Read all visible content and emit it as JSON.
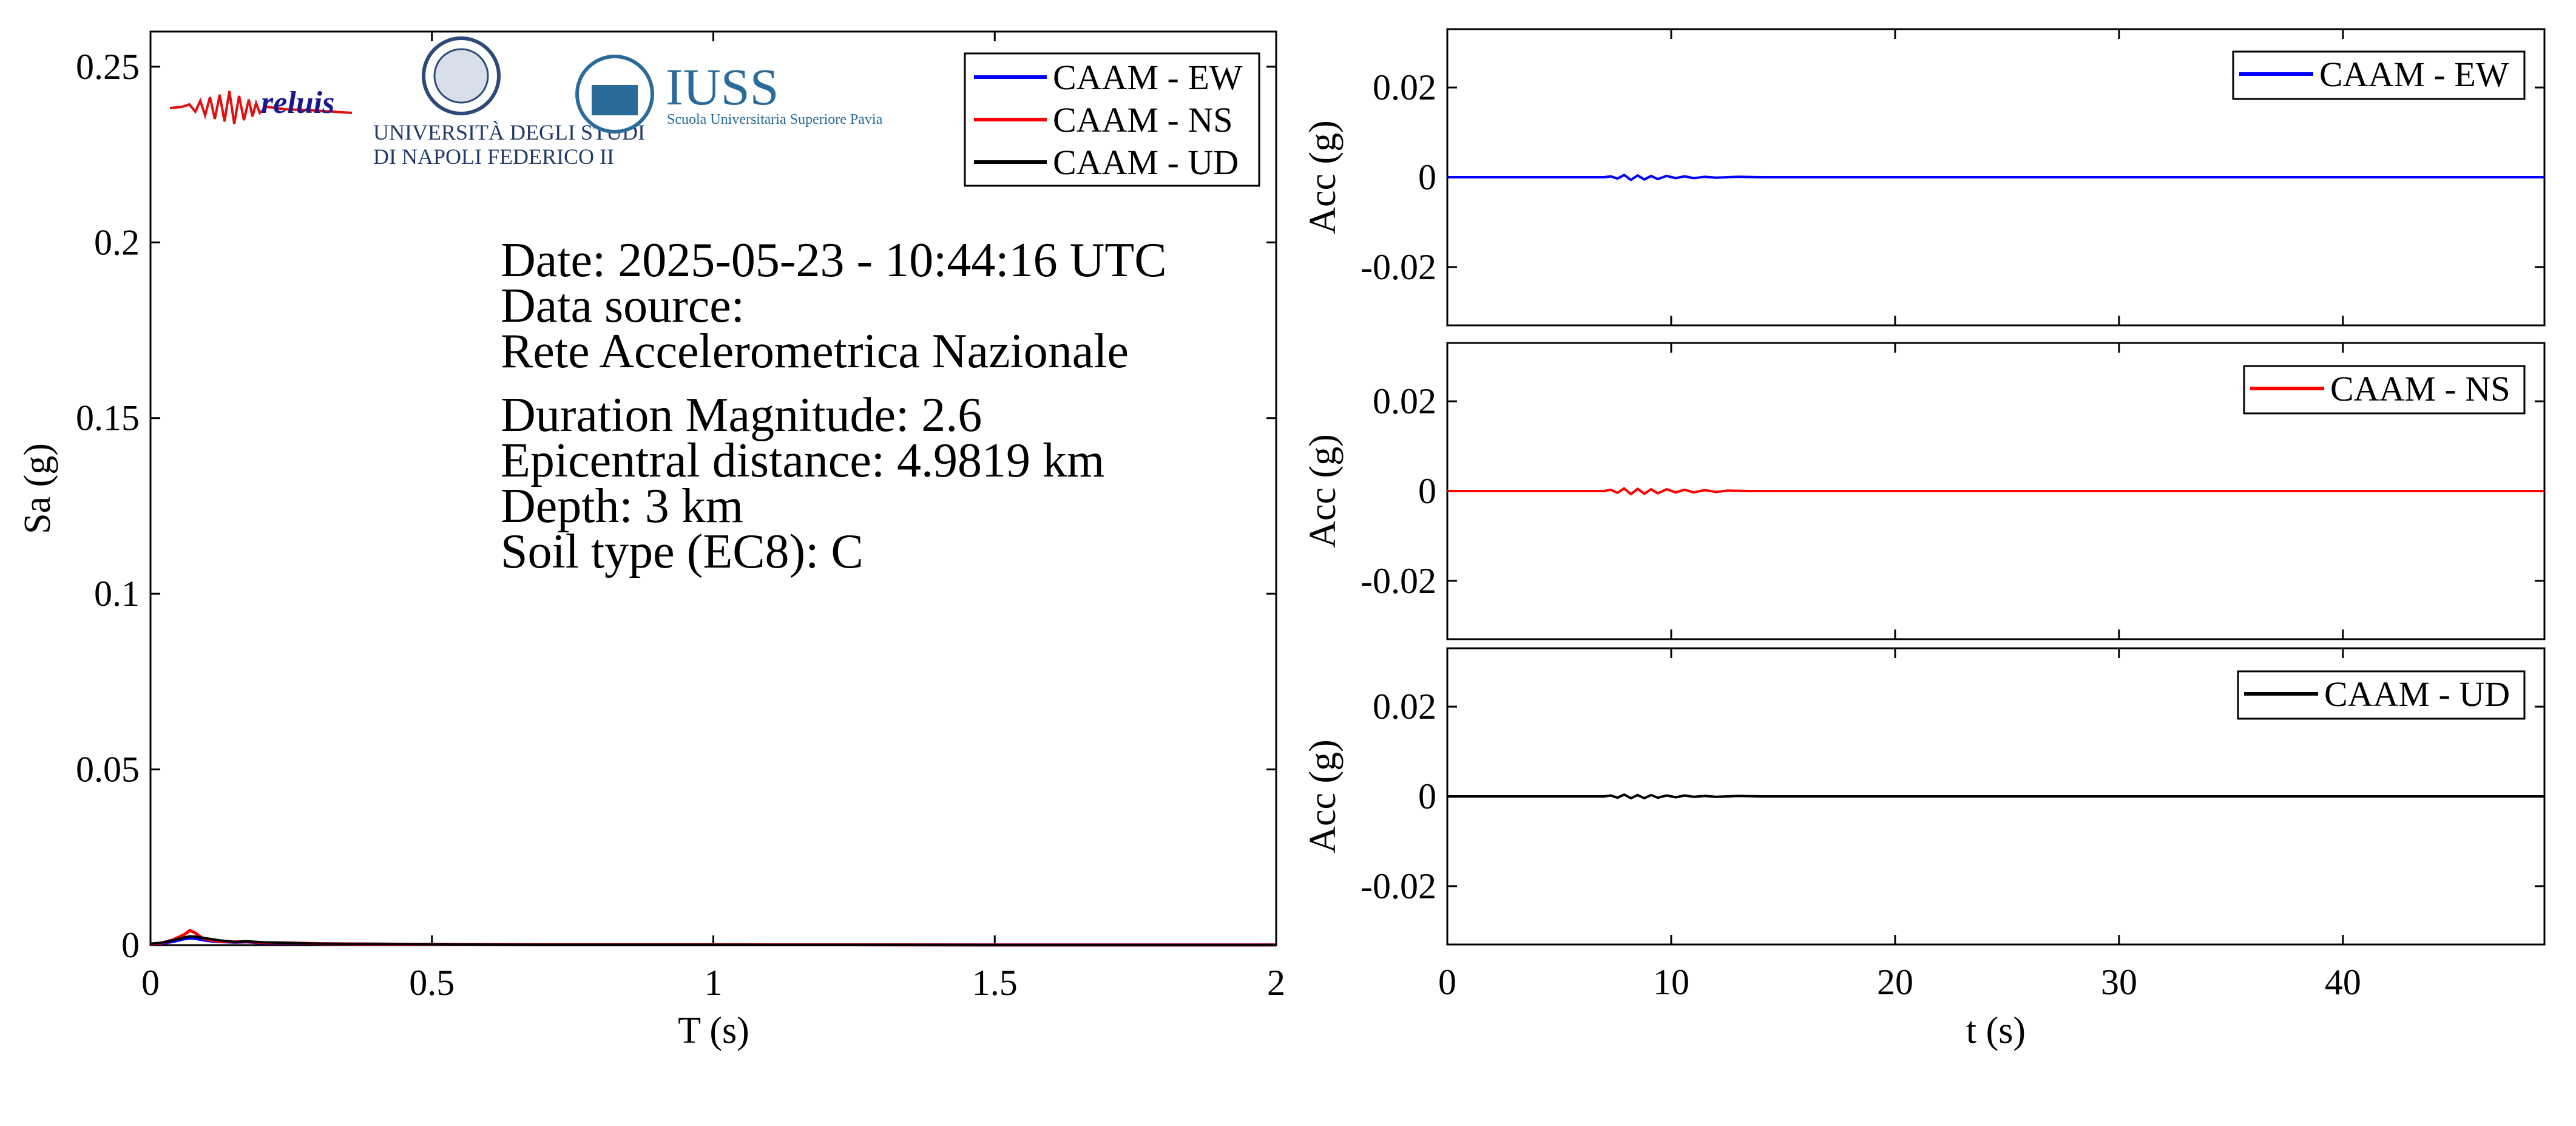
{
  "chart_data": [
    {
      "type": "line",
      "id": "spectrum",
      "xlabel": "T (s)",
      "ylabel": "Sa (g)",
      "xlim": [
        0,
        2
      ],
      "ylim": [
        0,
        0.26
      ],
      "xticks": [
        0,
        0.5,
        1,
        1.5,
        2
      ],
      "xtick_labels": [
        "0",
        "0.5",
        "1",
        "1.5",
        "2"
      ],
      "yticks": [
        0,
        0.05,
        0.1,
        0.15,
        0.2,
        0.25
      ],
      "ytick_labels": [
        "0",
        "0.05",
        "0.1",
        "0.15",
        "0.2",
        "0.25"
      ],
      "legend_position": "top-right",
      "series": [
        {
          "name": "CAAM - EW",
          "color": "#0000ff",
          "x": [
            0,
            0.02,
            0.04,
            0.06,
            0.07,
            0.08,
            0.1,
            0.12,
            0.15,
            0.17,
            0.2,
            0.25,
            0.3,
            0.4,
            0.5,
            0.7,
            1.0,
            1.5,
            2.0
          ],
          "y": [
            0.0003,
            0.0005,
            0.001,
            0.0018,
            0.002,
            0.0019,
            0.0013,
            0.001,
            0.0008,
            0.0009,
            0.0006,
            0.0005,
            0.0004,
            0.0003,
            0.0002,
            0.0001,
            0.0001,
            5e-05,
            3e-05
          ]
        },
        {
          "name": "CAAM - NS",
          "color": "#ff0000",
          "x": [
            0,
            0.02,
            0.04,
            0.06,
            0.07,
            0.08,
            0.09,
            0.1,
            0.12,
            0.15,
            0.17,
            0.2,
            0.25,
            0.3,
            0.4,
            0.5,
            0.7,
            1.0,
            1.5,
            2.0
          ],
          "y": [
            0.0003,
            0.0006,
            0.0015,
            0.003,
            0.0042,
            0.0034,
            0.0022,
            0.0016,
            0.0011,
            0.0009,
            0.001,
            0.0007,
            0.0006,
            0.0004,
            0.0003,
            0.0002,
            0.0001,
            0.0001,
            5e-05,
            3e-05
          ]
        },
        {
          "name": "CAAM - UD",
          "color": "#000000",
          "x": [
            0,
            0.02,
            0.04,
            0.06,
            0.07,
            0.08,
            0.1,
            0.12,
            0.15,
            0.17,
            0.2,
            0.25,
            0.3,
            0.4,
            0.5,
            0.7,
            1.0,
            1.5,
            2.0
          ],
          "y": [
            0.0004,
            0.0007,
            0.0014,
            0.0022,
            0.0025,
            0.0024,
            0.0019,
            0.0014,
            0.0009,
            0.0011,
            0.0008,
            0.0006,
            0.0004,
            0.0003,
            0.0002,
            0.0001,
            0.0001,
            5e-05,
            3e-05
          ]
        }
      ],
      "annotation_lines": [
        "Date: 2025-05-23 - 10:44:16 UTC",
        "Data source:",
        "Rete Accelerometrica Nazionale",
        "Duration Magnitude: 2.6",
        "Epicentral distance: 4.9819 km",
        "Depth: 3 km",
        "Soil type (EC8): C"
      ],
      "logos": {
        "reluis": "reluis",
        "unina_line1": "UNIVERSITÀ DEGLI STUDI",
        "unina_line2": "DI NAPOLI FEDERICO II",
        "iuss_name": "IUSS",
        "iuss_sub": "Scuola Universitaria Superiore Pavia"
      }
    },
    {
      "type": "line",
      "id": "acc-ew",
      "ylabel": "Acc (g)",
      "xlim": [
        0,
        49
      ],
      "ylim": [
        -0.033,
        0.033
      ],
      "yticks": [
        -0.02,
        0,
        0.02
      ],
      "ytick_labels": [
        "-0.02",
        "0",
        "0.02"
      ],
      "legend_position": "top-right",
      "series": [
        {
          "name": "CAAM - EW",
          "color": "#0000ff",
          "x": [
            0,
            7.0,
            7.3,
            7.6,
            7.9,
            8.2,
            8.5,
            8.8,
            9.1,
            9.4,
            9.8,
            10.2,
            10.6,
            11.0,
            11.5,
            12.0,
            13.0,
            14.0,
            20,
            30,
            40,
            49
          ],
          "y": [
            0,
            0,
            0.0002,
            -0.0003,
            0.0005,
            -0.0006,
            0.0004,
            -0.0005,
            0.0003,
            -0.0004,
            0.0003,
            -0.0002,
            0.0002,
            -0.0002,
            0.0001,
            -0.0001,
            0.0001,
            0,
            0,
            0,
            0,
            0
          ]
        }
      ]
    },
    {
      "type": "line",
      "id": "acc-ns",
      "ylabel": "Acc (g)",
      "xlim": [
        0,
        49
      ],
      "ylim": [
        -0.033,
        0.033
      ],
      "yticks": [
        -0.02,
        0,
        0.02
      ],
      "ytick_labels": [
        "-0.02",
        "0",
        "0.02"
      ],
      "legend_position": "top-right",
      "series": [
        {
          "name": "CAAM - NS",
          "color": "#ff0000",
          "x": [
            0,
            7.0,
            7.3,
            7.6,
            7.9,
            8.2,
            8.5,
            8.8,
            9.1,
            9.4,
            9.8,
            10.2,
            10.6,
            11.0,
            11.5,
            12.0,
            12.5,
            13.5,
            20,
            30,
            40,
            49
          ],
          "y": [
            0,
            0,
            0.0003,
            -0.0004,
            0.0006,
            -0.0007,
            0.0005,
            -0.0006,
            0.0004,
            -0.0005,
            0.0004,
            -0.0003,
            0.0003,
            -0.0003,
            0.0002,
            -0.0002,
            0.0001,
            0,
            0,
            0,
            0,
            0
          ]
        }
      ]
    },
    {
      "type": "line",
      "id": "acc-ud",
      "xlabel": "t (s)",
      "ylabel": "Acc (g)",
      "xlim": [
        0,
        49
      ],
      "ylim": [
        -0.033,
        0.033
      ],
      "xticks": [
        0,
        10,
        20,
        30,
        40
      ],
      "xtick_labels": [
        "0",
        "10",
        "20",
        "30",
        "40"
      ],
      "yticks": [
        -0.02,
        0,
        0.02
      ],
      "ytick_labels": [
        "-0.02",
        "0",
        "0.02"
      ],
      "legend_position": "top-right",
      "series": [
        {
          "name": "CAAM - UD",
          "color": "#000000",
          "x": [
            0,
            7.0,
            7.3,
            7.6,
            7.9,
            8.2,
            8.5,
            8.8,
            9.1,
            9.4,
            9.8,
            10.2,
            10.6,
            11.0,
            11.5,
            12.0,
            13.0,
            14.0,
            20,
            30,
            40,
            49
          ],
          "y": [
            0,
            0,
            0.0002,
            -0.0003,
            0.0004,
            -0.0004,
            0.0003,
            -0.0004,
            0.0003,
            -0.0003,
            0.0002,
            -0.0002,
            0.0002,
            -0.0001,
            0.0001,
            -0.0001,
            0.0001,
            0,
            0,
            0,
            0,
            0
          ]
        }
      ]
    }
  ]
}
